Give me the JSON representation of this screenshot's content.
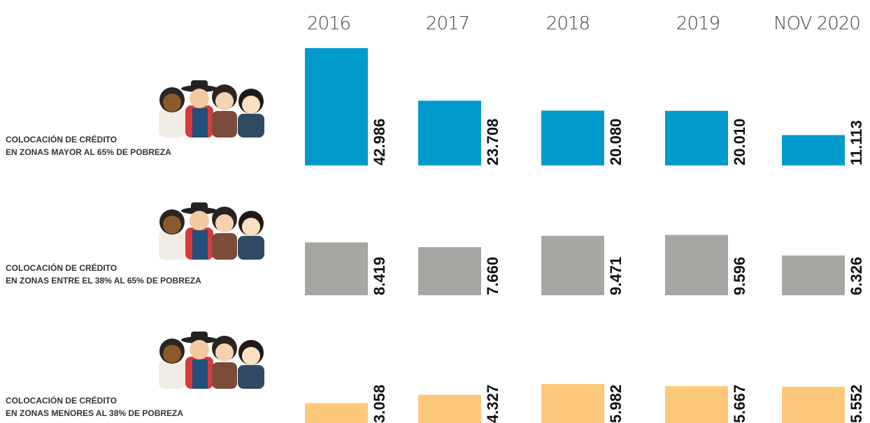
{
  "chart_data": [
    {
      "type": "bar",
      "title": "COLOCACIÓN DE CRÉDITO",
      "subtitle": "EN ZONAS MAYOR AL 65% DE POBREZA",
      "categories": [
        "2016",
        "2017",
        "2018",
        "2019",
        "NOV 2020"
      ],
      "values": [
        42986,
        23708,
        20080,
        20010,
        11113
      ],
      "value_labels": [
        "42.986",
        "23.708",
        "20.080",
        "20.010",
        "11.113"
      ],
      "color": "#0099cc",
      "ylim": [
        0,
        45000
      ]
    },
    {
      "type": "bar",
      "title": "COLOCACIÓN DE CRÉDITO",
      "subtitle": "EN ZONAS ENTRE EL 38% AL 65% DE POBREZA",
      "categories": [
        "2016",
        "2017",
        "2018",
        "2019",
        "NOV 2020"
      ],
      "values": [
        8419,
        7660,
        9471,
        9596,
        6326
      ],
      "value_labels": [
        "8.419",
        "7.660",
        "9.471",
        "9.596",
        "6.326"
      ],
      "color": "#a5a8a2",
      "ylim": [
        0,
        10000
      ]
    },
    {
      "type": "bar",
      "title": "COLOCACIÓN DE CRÉDITO",
      "subtitle": "EN ZONAS MENORES AL 38% DE POBREZA",
      "categories": [
        "2016",
        "2017",
        "2018",
        "2019",
        "NOV 2020"
      ],
      "values": [
        3058,
        4327,
        5982,
        5667,
        5552
      ],
      "value_labels": [
        "3.058",
        "4.327",
        "5.982",
        "5.667",
        "5.552"
      ],
      "color": "#fcc97a",
      "ylim": [
        0,
        6000
      ]
    }
  ]
}
